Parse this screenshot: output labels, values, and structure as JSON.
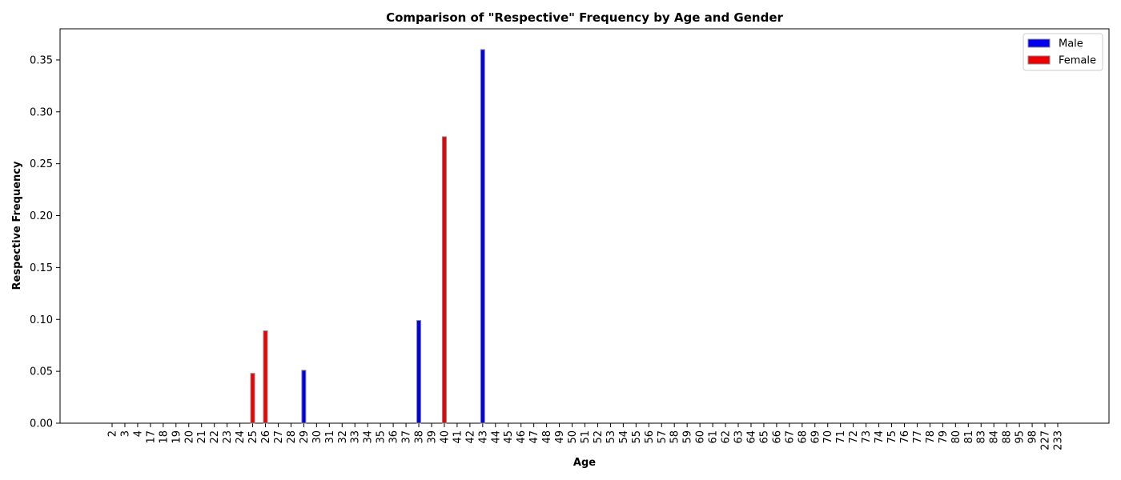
{
  "chart_data": {
    "type": "bar",
    "title": "Comparison of \"Respective\" Frequency by Age and Gender",
    "xlabel": "Age",
    "ylabel": "Respective Frequency",
    "ylim": [
      0,
      0.38
    ],
    "yticks": [
      "0.00",
      "0.05",
      "0.10",
      "0.15",
      "0.20",
      "0.25",
      "0.30",
      "0.35"
    ],
    "ytick_values": [
      0,
      0.05,
      0.1,
      0.15,
      0.2,
      0.25,
      0.3,
      0.35
    ],
    "grid": false,
    "legend_position": "top-right",
    "categories": [
      "2",
      "3",
      "4",
      "17",
      "18",
      "19",
      "20",
      "21",
      "22",
      "23",
      "24",
      "25",
      "26",
      "27",
      "28",
      "29",
      "30",
      "31",
      "32",
      "33",
      "34",
      "35",
      "36",
      "37",
      "38",
      "39",
      "40",
      "41",
      "42",
      "43",
      "44",
      "45",
      "46",
      "47",
      "48",
      "49",
      "50",
      "51",
      "52",
      "53",
      "54",
      "55",
      "56",
      "57",
      "58",
      "59",
      "60",
      "61",
      "62",
      "63",
      "64",
      "65",
      "66",
      "67",
      "68",
      "69",
      "70",
      "71",
      "72",
      "73",
      "74",
      "75",
      "76",
      "77",
      "78",
      "79",
      "80",
      "81",
      "83",
      "84",
      "88",
      "95",
      "98",
      "227",
      "233"
    ],
    "series": [
      {
        "name": "Male",
        "color": "#0000ee",
        "values": {
          "29": 0.051,
          "38": 0.099,
          "43": 0.36
        }
      },
      {
        "name": "Female",
        "color": "#ee0000",
        "values": {
          "25": 0.048,
          "26": 0.089,
          "40": 0.276
        }
      }
    ]
  }
}
